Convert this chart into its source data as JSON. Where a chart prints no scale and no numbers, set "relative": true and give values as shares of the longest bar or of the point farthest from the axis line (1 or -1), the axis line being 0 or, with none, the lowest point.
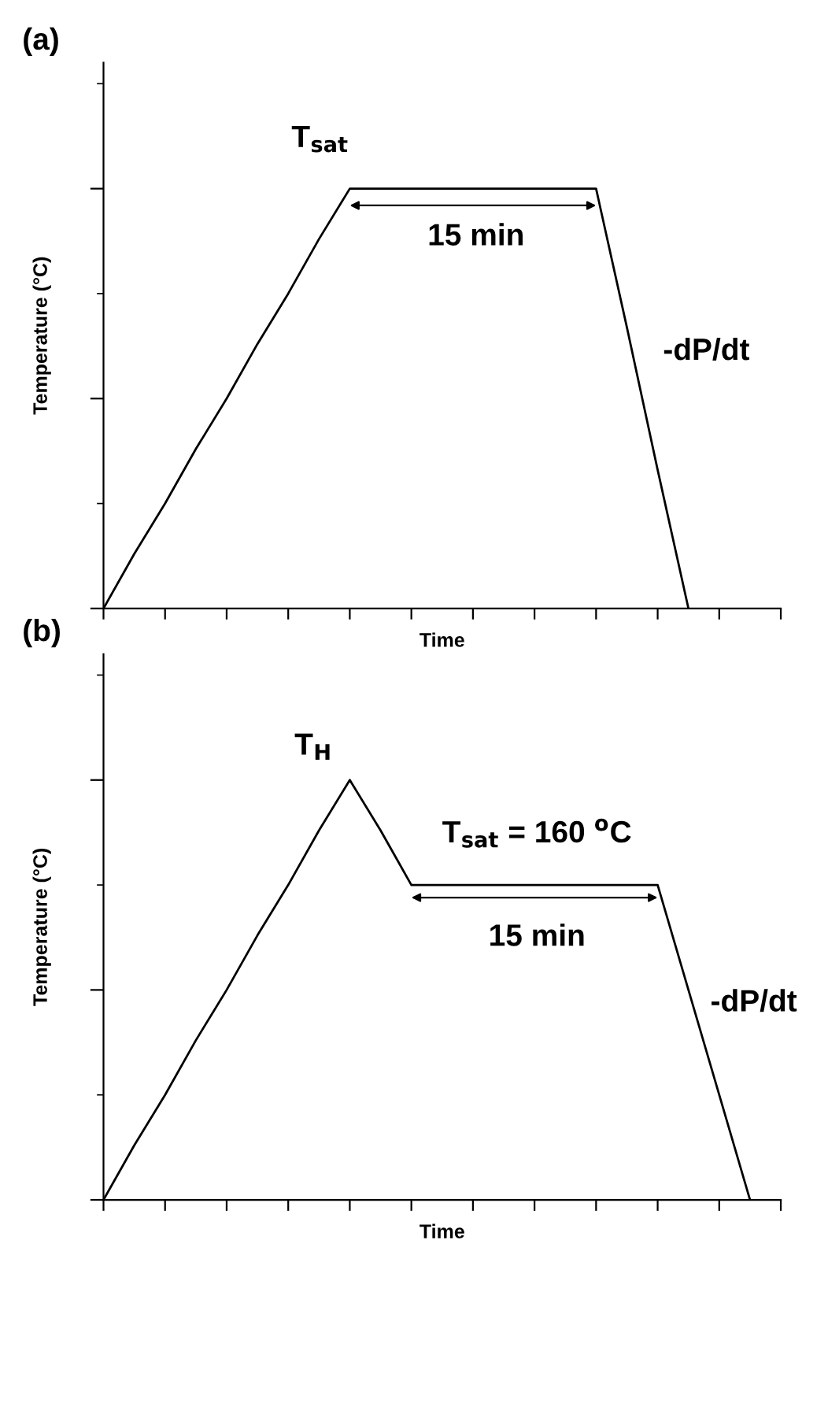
{
  "chart_data": [
    {
      "type": "line",
      "title": "(a)",
      "xlabel": "Time",
      "ylabel": "Temperature (°C)",
      "relative": true,
      "tick_labels": false,
      "grid": false,
      "legend": false,
      "marker": "none",
      "line_style": "solid",
      "categories": [
        null,
        null,
        null,
        null,
        null,
        null,
        null,
        null,
        null,
        null,
        null,
        null,
        null,
        null,
        null,
        null,
        null,
        null,
        null,
        null,
        null,
        null,
        null
      ],
      "series": [
        {
          "color": "#000000",
          "values": [
            0,
            0.13,
            0.25,
            0.38,
            0.5,
            0.63,
            0.75,
            0.88,
            1,
            1,
            1,
            1,
            1,
            1,
            1,
            1,
            1,
            0.67,
            0.33,
            0,
            null,
            null,
            null
          ]
        }
      ],
      "annotations": [
        "T$_{sat}$",
        "15 min",
        "-dP/dt"
      ]
    },
    {
      "type": "line",
      "title": "(b)",
      "xlabel": "Time",
      "ylabel": "Temperature (°C)",
      "relative": true,
      "tick_labels": false,
      "grid": false,
      "legend": false,
      "marker": "none",
      "line_style": "solid",
      "categories": [
        null,
        null,
        null,
        null,
        null,
        null,
        null,
        null,
        null,
        null,
        null,
        null,
        null,
        null,
        null,
        null,
        null,
        null,
        null,
        null,
        null,
        null,
        null
      ],
      "series": [
        {
          "color": "#000000",
          "values": [
            0,
            0.13,
            0.25,
            0.38,
            0.5,
            0.63,
            0.75,
            0.88,
            1,
            0.88,
            0.75,
            0.75,
            0.75,
            0.75,
            0.75,
            0.75,
            0.75,
            0.75,
            0.75,
            0.5,
            0.25,
            0,
            null
          ]
        }
      ],
      "annotations": [
        "T$_{H}$",
        "T$_{sat}$ = 160 $^{o}$C",
        "15 min",
        "-dP/dt"
      ]
    }
  ]
}
